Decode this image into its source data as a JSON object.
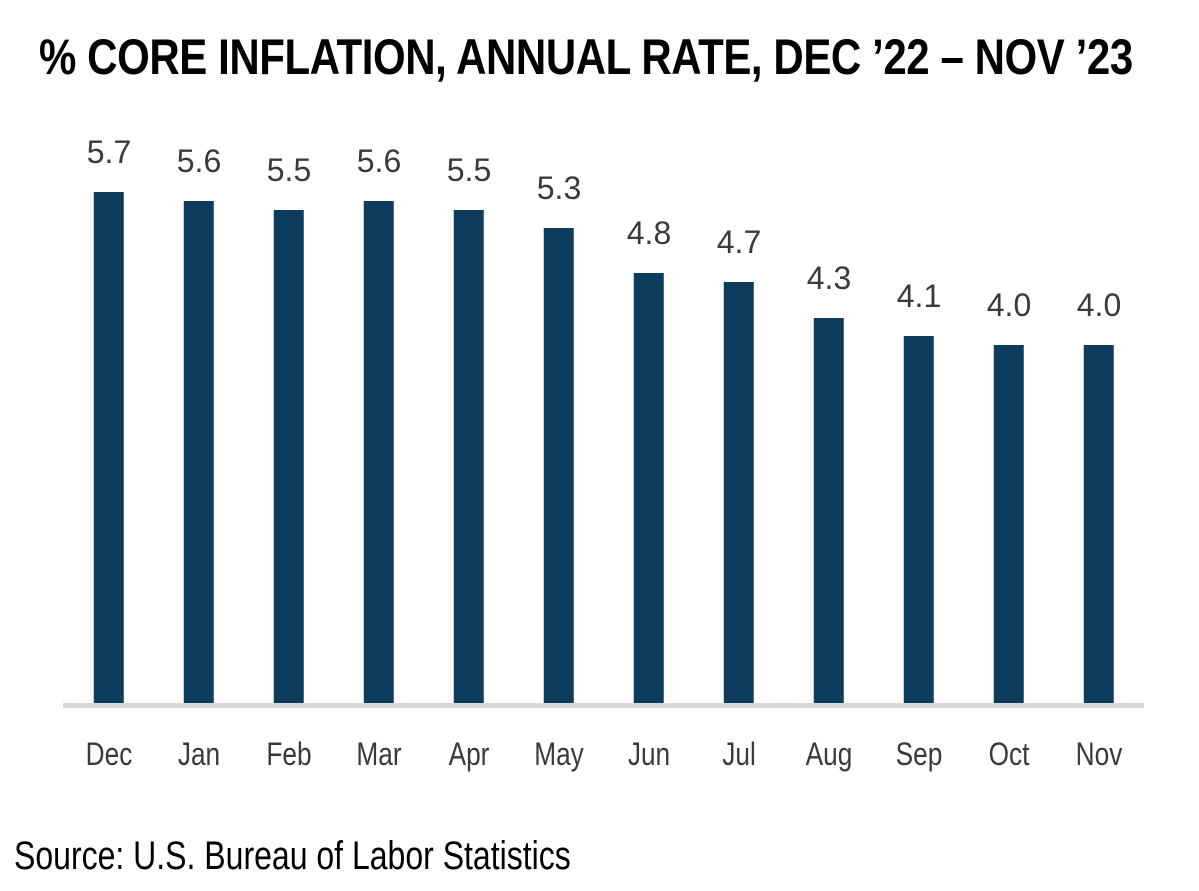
{
  "chart": {
    "title": "% CORE INFLATION, ANNUAL RATE, DEC ’22 – NOV ’23",
    "source": "Source: U.S. Bureau of Labor Statistics"
  },
  "chart_data": {
    "type": "bar",
    "title": "% CORE INFLATION, ANNUAL RATE, DEC ’22 – NOV ’23",
    "categories": [
      "Dec",
      "Jan",
      "Feb",
      "Mar",
      "Apr",
      "May",
      "Jun",
      "Jul",
      "Aug",
      "Sep",
      "Oct",
      "Nov"
    ],
    "values": [
      5.7,
      5.6,
      5.5,
      5.6,
      5.5,
      5.3,
      4.8,
      4.7,
      4.3,
      4.1,
      4.0,
      4.0
    ],
    "data_labels": [
      "5.7",
      "5.6",
      "5.5",
      "5.6",
      "5.5",
      "5.3",
      "4.8",
      "4.7",
      "4.3",
      "4.1",
      "4.0",
      "4.0"
    ],
    "xlabel": "",
    "ylabel": "",
    "ylim": [
      0,
      6
    ],
    "grid": false,
    "legend_position": "none",
    "y_axis_visible": false,
    "x_axis_line_visible": true,
    "annotation": "Source: U.S. Bureau of Labor Statistics",
    "colors": {
      "bar": "#0d3c5c",
      "value_label": "#3a3a3a",
      "month_label": "#3a3a3a",
      "axis_line": "#d9d9d9",
      "title": "#000000",
      "source": "#000000"
    }
  }
}
